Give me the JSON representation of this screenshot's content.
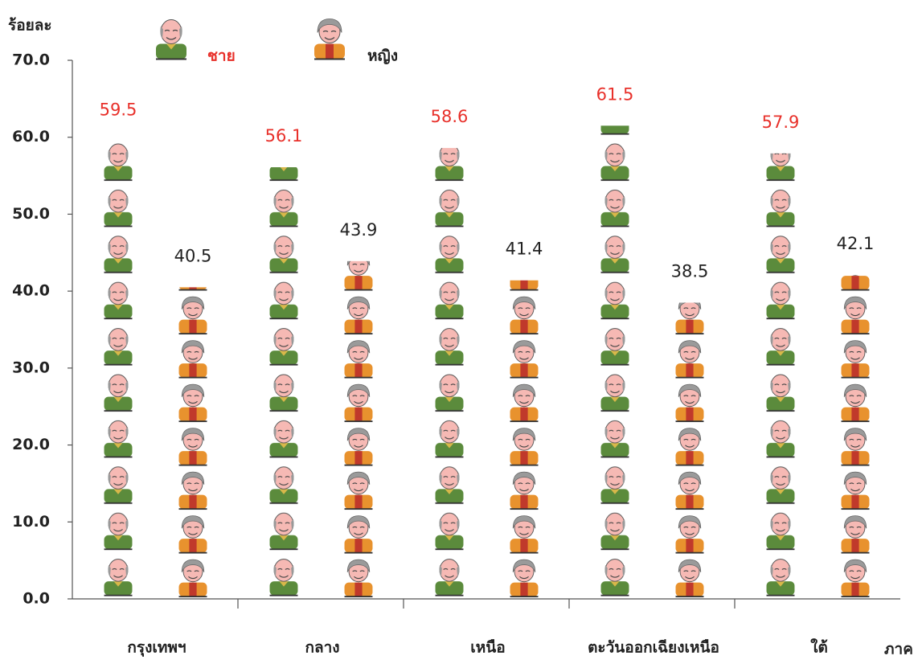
{
  "chart_data": {
    "type": "pictograph-bar",
    "y_label": "ร้อยละ",
    "x_label": "ภาค",
    "categories": [
      "กรุงเทพฯ",
      "กลาง",
      "เหนือ",
      "ตะวันออกเฉียงเหนือ",
      "ใต้"
    ],
    "series": [
      {
        "name": "ชาย",
        "color": "#5b8b3c",
        "label_color": "#e8302a",
        "values": [
          59.5,
          56.1,
          58.6,
          61.5,
          57.9
        ]
      },
      {
        "name": "หญิง",
        "color": "#e8922e",
        "label_color": "#222222",
        "values": [
          40.5,
          43.9,
          41.4,
          38.5,
          42.1
        ]
      }
    ],
    "ylim": [
      0,
      70
    ],
    "yticks": [
      {
        "value": 0,
        "label": "0.0"
      },
      {
        "value": 10,
        "label": "10.0"
      },
      {
        "value": 20,
        "label": "20.0"
      },
      {
        "value": 30,
        "label": "30.0"
      },
      {
        "value": 40,
        "label": "40.0"
      },
      {
        "value": 50,
        "label": "50.0"
      },
      {
        "value": 60,
        "label": "60.0"
      },
      {
        "value": 70,
        "label": "70.0"
      }
    ]
  }
}
